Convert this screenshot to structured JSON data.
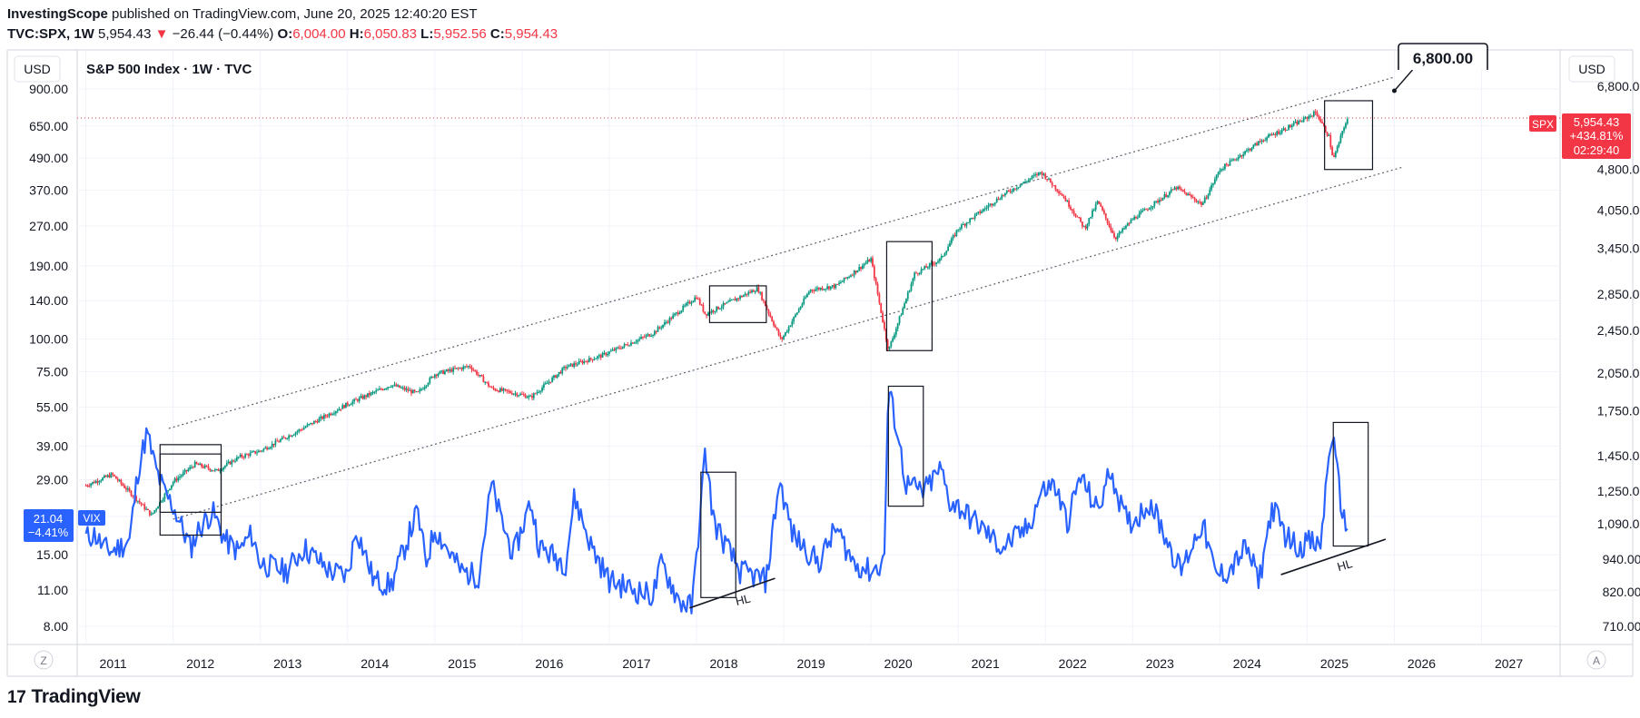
{
  "header": {
    "author": "InvestingScope",
    "published_text": " published on TradingView.com, June 20, 2025 12:40:20 EST"
  },
  "quote": {
    "ticker": "TVC:SPX, 1W",
    "price": "5,954.43",
    "change_arrow": "▼",
    "change": "−26.44 (−0.44%)",
    "open_label": "O:",
    "open": "6,004.00",
    "high_label": "H:",
    "high": "6,050.83",
    "low_label": "L:",
    "low": "5,952.56",
    "close_label": "C:",
    "close": "5,954.43"
  },
  "colors": {
    "up": "#089981",
    "down": "#f23645",
    "vix": "#2962ff",
    "price_tag": "#f23645",
    "grid": "#f0f3fa"
  },
  "chart_data": {
    "type": "line",
    "title": "S&P 500 Index · 1W · TVC",
    "currency_left": "USD",
    "currency_right": "USD",
    "x_ticks": [
      "2011",
      "2012",
      "2013",
      "2014",
      "2015",
      "2016",
      "2017",
      "2018",
      "2019",
      "2020",
      "2021",
      "2022",
      "2023",
      "2024",
      "2025",
      "2026",
      "2027"
    ],
    "y_left_ticks": [
      "900.00",
      "650.00",
      "490.00",
      "370.00",
      "270.00",
      "190.00",
      "140.00",
      "100.00",
      "75.00",
      "55.00",
      "39.00",
      "29.00",
      "21.00",
      "15.00",
      "11.00",
      "8.00"
    ],
    "y_left_values": [
      900,
      650,
      490,
      370,
      270,
      190,
      140,
      100,
      75,
      55,
      39,
      29,
      21,
      15,
      11,
      8
    ],
    "y_right_ticks": [
      "6,800.00",
      "4,800.00",
      "4,050.00",
      "3,450.00",
      "2,850.00",
      "2,450.00",
      "2,050.00",
      "1,750.00",
      "1,450.00",
      "1,250.00",
      "1,090.00",
      "940.00",
      "820.00",
      "710.00"
    ],
    "y_right_values": [
      6800,
      4800,
      4050,
      3450,
      2850,
      2450,
      2050,
      1750,
      1450,
      1250,
      1090,
      940,
      820,
      710
    ],
    "log_scale": true,
    "grid": true,
    "series": [
      {
        "name": "SPX",
        "points": [
          [
            2011.0,
            1280
          ],
          [
            2011.3,
            1340
          ],
          [
            2011.6,
            1200
          ],
          [
            2011.75,
            1130
          ],
          [
            2012.0,
            1300
          ],
          [
            2012.25,
            1400
          ],
          [
            2012.5,
            1360
          ],
          [
            2012.75,
            1440
          ],
          [
            2013.0,
            1480
          ],
          [
            2013.5,
            1630
          ],
          [
            2014.0,
            1800
          ],
          [
            2014.5,
            1950
          ],
          [
            2014.8,
            1880
          ],
          [
            2015.0,
            2040
          ],
          [
            2015.4,
            2110
          ],
          [
            2015.65,
            1920
          ],
          [
            2016.0,
            1870
          ],
          [
            2016.1,
            1850
          ],
          [
            2016.5,
            2100
          ],
          [
            2016.9,
            2200
          ],
          [
            2017.5,
            2420
          ],
          [
            2018.0,
            2820
          ],
          [
            2018.1,
            2620
          ],
          [
            2018.7,
            2920
          ],
          [
            2018.97,
            2350
          ],
          [
            2019.3,
            2900
          ],
          [
            2019.6,
            2950
          ],
          [
            2020.0,
            3300
          ],
          [
            2020.2,
            2250
          ],
          [
            2020.5,
            3100
          ],
          [
            2020.8,
            3300
          ],
          [
            2021.0,
            3750
          ],
          [
            2021.5,
            4300
          ],
          [
            2021.95,
            4750
          ],
          [
            2022.2,
            4300
          ],
          [
            2022.45,
            3750
          ],
          [
            2022.6,
            4200
          ],
          [
            2022.8,
            3600
          ],
          [
            2023.0,
            3900
          ],
          [
            2023.5,
            4450
          ],
          [
            2023.8,
            4150
          ],
          [
            2024.0,
            4800
          ],
          [
            2024.5,
            5450
          ],
          [
            2024.95,
            5900
          ],
          [
            2025.1,
            6100
          ],
          [
            2025.25,
            5500
          ],
          [
            2025.3,
            5000
          ],
          [
            2025.45,
            5900
          ],
          [
            2025.47,
            5954
          ]
        ]
      },
      {
        "name": "VIX",
        "points": [
          [
            2011.0,
            17.5
          ],
          [
            2011.1,
            18
          ],
          [
            2011.2,
            16
          ],
          [
            2011.3,
            15.5
          ],
          [
            2011.5,
            17
          ],
          [
            2011.6,
            32
          ],
          [
            2011.7,
            44
          ],
          [
            2011.8,
            32
          ],
          [
            2011.9,
            26
          ],
          [
            2012.0,
            23
          ],
          [
            2012.2,
            16
          ],
          [
            2012.3,
            19
          ],
          [
            2012.45,
            22
          ],
          [
            2012.6,
            17
          ],
          [
            2012.75,
            15.5
          ],
          [
            2012.9,
            18
          ],
          [
            2013.0,
            14
          ],
          [
            2013.3,
            13
          ],
          [
            2013.5,
            16
          ],
          [
            2013.8,
            13
          ],
          [
            2014.0,
            12.5
          ],
          [
            2014.1,
            19
          ],
          [
            2014.3,
            12
          ],
          [
            2014.5,
            11.5
          ],
          [
            2014.8,
            22
          ],
          [
            2014.9,
            14
          ],
          [
            2015.0,
            19
          ],
          [
            2015.3,
            13
          ],
          [
            2015.5,
            12.5
          ],
          [
            2015.65,
            28
          ],
          [
            2015.75,
            21
          ],
          [
            2015.9,
            15
          ],
          [
            2016.1,
            24
          ],
          [
            2016.2,
            16
          ],
          [
            2016.5,
            14
          ],
          [
            2016.6,
            25
          ],
          [
            2016.8,
            16
          ],
          [
            2017.0,
            12
          ],
          [
            2017.3,
            11
          ],
          [
            2017.5,
            10.5
          ],
          [
            2017.6,
            14
          ],
          [
            2017.8,
            10
          ],
          [
            2017.95,
            9.5
          ],
          [
            2018.1,
            37
          ],
          [
            2018.2,
            20
          ],
          [
            2018.35,
            16
          ],
          [
            2018.5,
            13
          ],
          [
            2018.8,
            12
          ],
          [
            2018.95,
            29
          ],
          [
            2019.1,
            18
          ],
          [
            2019.4,
            14
          ],
          [
            2019.6,
            19
          ],
          [
            2019.8,
            14
          ],
          [
            2020.0,
            13
          ],
          [
            2020.15,
            14
          ],
          [
            2020.2,
            65
          ],
          [
            2020.3,
            45
          ],
          [
            2020.4,
            28
          ],
          [
            2020.6,
            26
          ],
          [
            2020.8,
            32
          ],
          [
            2020.9,
            24
          ],
          [
            2021.0,
            23
          ],
          [
            2021.2,
            20
          ],
          [
            2021.5,
            16
          ],
          [
            2021.8,
            19
          ],
          [
            2021.95,
            26
          ],
          [
            2022.1,
            28
          ],
          [
            2022.25,
            20
          ],
          [
            2022.4,
            30
          ],
          [
            2022.6,
            22
          ],
          [
            2022.75,
            32
          ],
          [
            2022.9,
            21
          ],
          [
            2023.0,
            20
          ],
          [
            2023.2,
            24
          ],
          [
            2023.4,
            17
          ],
          [
            2023.55,
            13
          ],
          [
            2023.8,
            20
          ],
          [
            2023.95,
            12.5
          ],
          [
            2024.1,
            13
          ],
          [
            2024.3,
            16
          ],
          [
            2024.45,
            12
          ],
          [
            2024.6,
            23
          ],
          [
            2024.75,
            18
          ],
          [
            2024.9,
            16
          ],
          [
            2025.0,
            17
          ],
          [
            2025.15,
            16
          ],
          [
            2025.28,
            45
          ],
          [
            2025.38,
            25
          ],
          [
            2025.45,
            18
          ],
          [
            2025.47,
            21.04
          ]
        ]
      }
    ],
    "last_price_tag": {
      "label": "SPX",
      "price": "5,954.43",
      "change": "+434.81%",
      "countdown": "02:29:40"
    },
    "vix_tag": {
      "label": "VIX",
      "value": "21.04",
      "change": "−4.41%"
    },
    "annotations": {
      "target_callout": "6,800.00",
      "hl_labels": [
        "HL",
        "HL"
      ]
    }
  },
  "footer": {
    "logo_mark": "17",
    "logo_text": "TradingView"
  },
  "bottom_controls": {
    "left": "Z",
    "right": "A"
  }
}
